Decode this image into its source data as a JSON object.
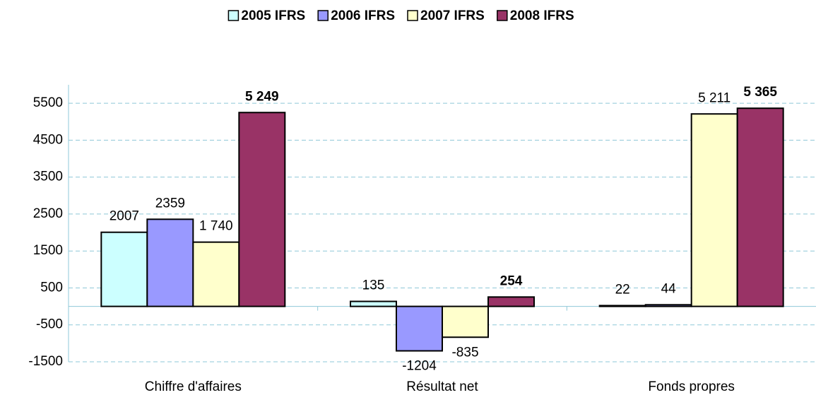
{
  "chart_data": {
    "type": "bar",
    "categories": [
      "Chiffre d'affaires",
      "Résultat net",
      "Fonds propres"
    ],
    "series": [
      {
        "name": "2005 IFRS",
        "color": "#ccffff",
        "values": [
          2007,
          135,
          22
        ],
        "value_labels": [
          "2007",
          "135",
          "22"
        ]
      },
      {
        "name": "2006 IFRS",
        "color": "#9999ff",
        "values": [
          2359,
          -1204,
          44
        ],
        "value_labels": [
          "2359",
          "-1204",
          "44"
        ]
      },
      {
        "name": "2007 IFRS",
        "color": "#ffffcc",
        "values": [
          1740,
          -835,
          5211
        ],
        "value_labels": [
          "1 740",
          "-835",
          "5 211"
        ]
      },
      {
        "name": "2008 IFRS",
        "color": "#993366",
        "values": [
          5249,
          254,
          5365
        ],
        "value_labels": [
          "5 249",
          "254",
          "5 365"
        ]
      }
    ],
    "ylim": [
      -1500,
      6000
    ],
    "yticks": [
      -1500,
      -500,
      500,
      1500,
      2500,
      3500,
      4500,
      5500
    ],
    "grid": true,
    "legend": "top"
  }
}
